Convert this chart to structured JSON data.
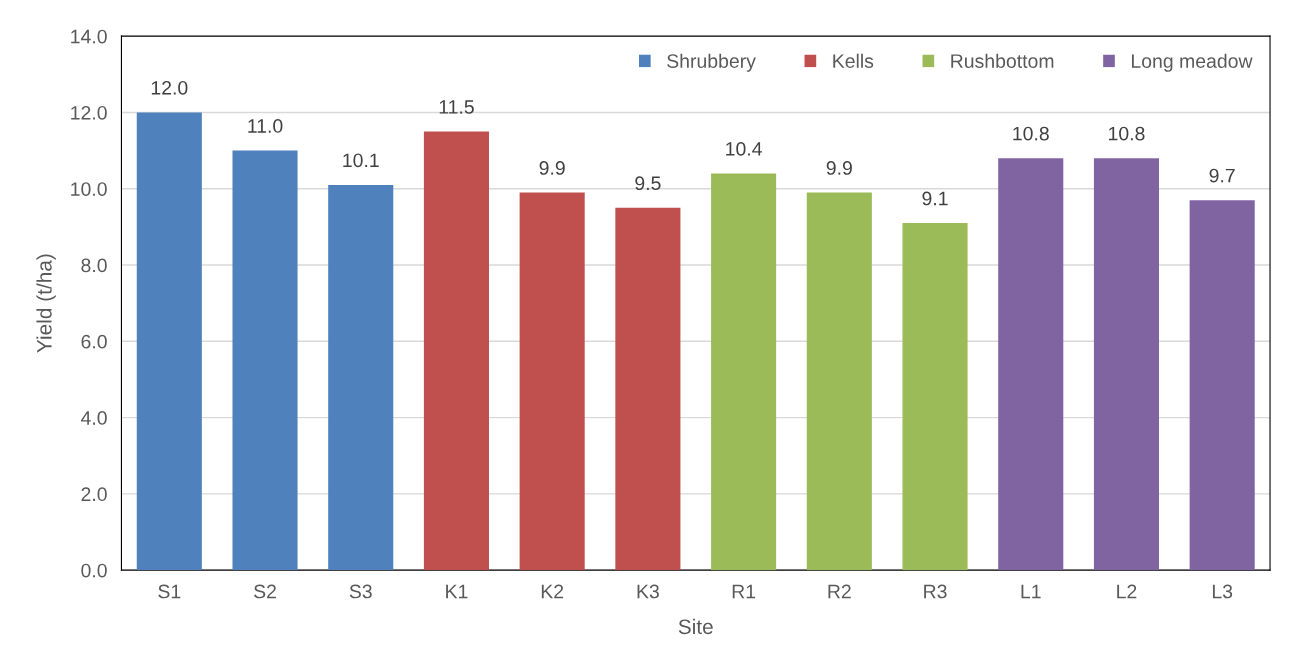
{
  "chart_data": {
    "type": "bar",
    "xlabel": "Site",
    "ylabel": "Yield (t/ha)",
    "categories": [
      "S1",
      "S2",
      "S3",
      "K1",
      "K2",
      "K3",
      "R1",
      "R2",
      "R3",
      "L1",
      "L2",
      "L3"
    ],
    "series": [
      {
        "name": "Shrubbery",
        "color": "#4f81bd",
        "values": [
          12.0,
          11.0,
          10.1,
          null,
          null,
          null,
          null,
          null,
          null,
          null,
          null,
          null
        ],
        "value_labels": [
          "12.0",
          "11.0",
          "10.1",
          null,
          null,
          null,
          null,
          null,
          null,
          null,
          null,
          null
        ]
      },
      {
        "name": "Kells",
        "color": "#c0504d",
        "values": [
          null,
          null,
          null,
          11.5,
          9.9,
          9.5,
          null,
          null,
          null,
          null,
          null,
          null
        ],
        "value_labels": [
          null,
          null,
          null,
          "11.5",
          "9.9",
          "9.5",
          null,
          null,
          null,
          null,
          null,
          null
        ]
      },
      {
        "name": "Rushbottom",
        "color": "#9bbb59",
        "values": [
          null,
          null,
          null,
          null,
          null,
          null,
          10.4,
          9.9,
          9.1,
          null,
          null,
          null
        ],
        "value_labels": [
          null,
          null,
          null,
          null,
          null,
          null,
          "10.4",
          "9.9",
          "9.1",
          null,
          null,
          null
        ]
      },
      {
        "name": "Long meadow",
        "color": "#8064a2",
        "values": [
          null,
          null,
          null,
          null,
          null,
          null,
          null,
          null,
          null,
          10.8,
          10.8,
          9.7
        ],
        "value_labels": [
          null,
          null,
          null,
          null,
          null,
          null,
          null,
          null,
          null,
          "10.8",
          "10.8",
          "9.7"
        ]
      }
    ],
    "ylim": [
      0,
      14
    ],
    "yticks": [
      {
        "value": 0,
        "label": "0.0"
      },
      {
        "value": 2,
        "label": "2.0"
      },
      {
        "value": 4,
        "label": "4.0"
      },
      {
        "value": 6,
        "label": "6.0"
      },
      {
        "value": 8,
        "label": "8.0"
      },
      {
        "value": 10,
        "label": "10.0"
      },
      {
        "value": 12,
        "label": "12.0"
      },
      {
        "value": 14,
        "label": "14.0"
      }
    ],
    "grid": "y",
    "legend": "top right"
  }
}
